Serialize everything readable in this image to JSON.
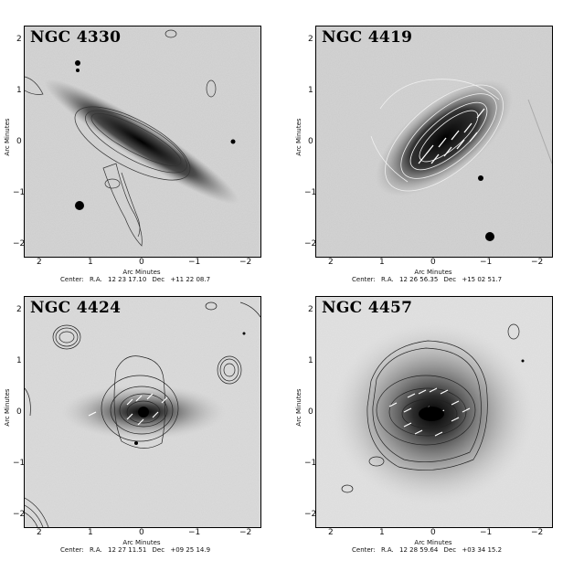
{
  "panels": [
    {
      "name": "NGC 4330",
      "xticks": [
        "2",
        "1",
        "0",
        "−1",
        "−2"
      ],
      "yticks": [
        "2",
        "1",
        "0",
        "−1",
        "−2"
      ],
      "xlabel": "Arc Minutes",
      "ylabel": "Arc Minutes",
      "center_label": "Center:",
      "ra_label": "R.A.",
      "ra": "12 23 17.10",
      "dec_label": "Dec",
      "dec": "+11 22 08.7"
    },
    {
      "name": "NGC 4419",
      "xticks": [
        "2",
        "1",
        "0",
        "−1",
        "−2"
      ],
      "yticks": [
        "2",
        "1",
        "0",
        "−1",
        "−2"
      ],
      "xlabel": "Arc Minutes",
      "ylabel": "Arc Minutes",
      "center_label": "Center:",
      "ra_label": "R.A.",
      "ra": "12 26 56.35",
      "dec_label": "Dec",
      "dec": "+15 02 51.7"
    },
    {
      "name": "NGC 4424",
      "xticks": [
        "2",
        "1",
        "0",
        "−1",
        "−2"
      ],
      "yticks": [
        "2",
        "1",
        "0",
        "−1",
        "−2"
      ],
      "xlabel": "Arc Minutes",
      "ylabel": "Arc Minutes",
      "center_label": "Center:",
      "ra_label": "R.A.",
      "ra": "12 27 11.51",
      "dec_label": "Dec",
      "dec": "+09 25 14.9"
    },
    {
      "name": "NGC 4457",
      "xticks": [
        "2",
        "1",
        "0",
        "−1",
        "−2"
      ],
      "yticks": [
        "2",
        "1",
        "0",
        "−1",
        "−2"
      ],
      "xlabel": "Arc Minutes",
      "ylabel": "Arc Minutes",
      "center_label": "Center:",
      "ra_label": "R.A.",
      "ra": "12 28 59.64",
      "dec_label": "Dec",
      "dec": "+03 34 15.2"
    }
  ]
}
